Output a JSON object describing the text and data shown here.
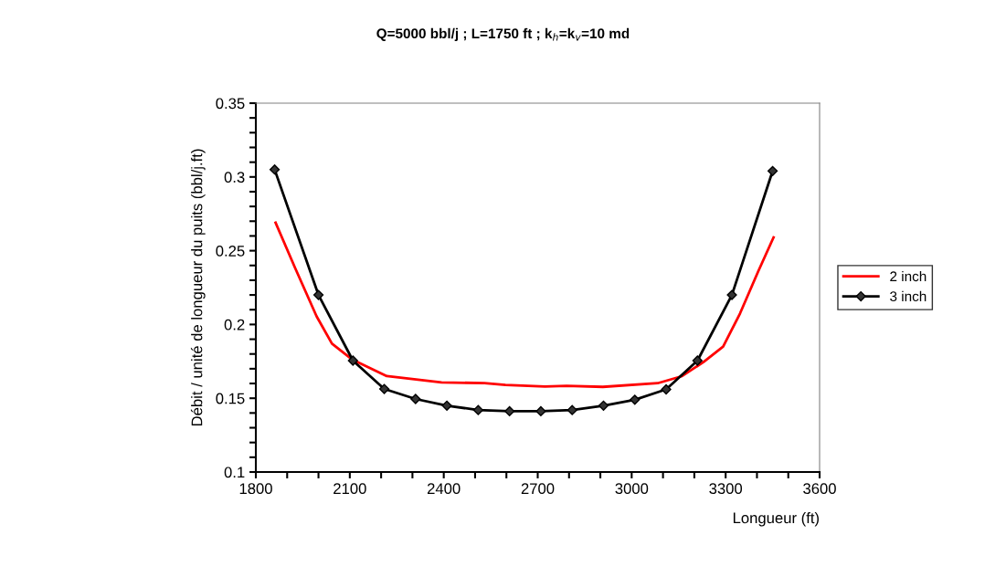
{
  "chart_data": {
    "type": "line",
    "title": "Q=5000 bbl/j ; L=1750 ft ; k$_{h}$=k$_{v}$=10 md",
    "xlabel": "Longueur (ft)",
    "ylabel": "Débit / unité de longueur du puits (bbl/j.ft)",
    "xlim": [
      1800,
      3600
    ],
    "ylim": [
      0.1,
      0.35
    ],
    "xticks": [
      1800,
      {
        "value": 1900,
        "label": null
      },
      {
        "value": 2000,
        "label": null
      },
      2100,
      {
        "value": 2200,
        "label": null
      },
      {
        "value": 2300,
        "label": null
      },
      2400,
      {
        "value": 2500,
        "label": null
      },
      {
        "value": 2600,
        "label": null
      },
      2700,
      {
        "value": 2800,
        "label": null
      },
      {
        "value": 2900,
        "label": null
      },
      3000,
      {
        "value": 3100,
        "label": null
      },
      {
        "value": 3200,
        "label": null
      },
      3300,
      {
        "value": 3400,
        "label": null
      },
      {
        "value": 3500,
        "label": null
      },
      3600
    ],
    "yticks": [
      0.1,
      {
        "value": 0.11,
        "label": null
      },
      {
        "value": 0.12,
        "label": null
      },
      {
        "value": 0.13,
        "label": null
      },
      {
        "value": 0.14,
        "label": null
      },
      0.15,
      {
        "value": 0.16,
        "label": null
      },
      {
        "value": 0.17,
        "label": null
      },
      {
        "value": 0.18,
        "label": null
      },
      {
        "value": 0.19,
        "label": null
      },
      0.2,
      {
        "value": 0.21,
        "label": null
      },
      {
        "value": 0.22,
        "label": null
      },
      {
        "value": 0.23,
        "label": null
      },
      {
        "value": 0.24,
        "label": null
      },
      0.25,
      {
        "value": 0.26,
        "label": null
      },
      {
        "value": 0.27,
        "label": null
      },
      {
        "value": 0.28,
        "label": null
      },
      {
        "value": 0.29,
        "label": null
      },
      0.3,
      {
        "value": 0.31,
        "label": null
      },
      {
        "value": 0.32,
        "label": null
      },
      {
        "value": 0.33,
        "label": null
      },
      {
        "value": 0.34,
        "label": null
      },
      0.35
    ],
    "grid": false,
    "legend": "right",
    "series": [
      {
        "name": "2 inch",
        "color": "#ff0000",
        "marker": "none",
        "x": [
          1863,
          1926,
          1994,
          2043,
          2106,
          2218,
          2393,
          2530,
          2597,
          2723,
          2792,
          2908,
          3083,
          3161,
          3229,
          3292,
          3346,
          3404,
          3453
        ],
        "values": [
          0.269,
          0.238,
          0.2055,
          0.187,
          0.1765,
          0.165,
          0.1607,
          0.1603,
          0.159,
          0.158,
          0.1584,
          0.1577,
          0.1602,
          0.165,
          0.1745,
          0.185,
          0.2075,
          0.236,
          0.259
        ]
      },
      {
        "name": "3 inch",
        "color": "#000000",
        "marker": "diamond",
        "x": [
          1860,
          2000,
          2110,
          2210,
          2310,
          2410,
          2510,
          2610,
          2710,
          2810,
          2910,
          3010,
          3110,
          3210,
          3320,
          3450
        ],
        "values": [
          0.305,
          0.22,
          0.1755,
          0.1563,
          0.1495,
          0.145,
          0.142,
          0.1412,
          0.1412,
          0.142,
          0.145,
          0.149,
          0.156,
          0.1755,
          0.22,
          0.304
        ]
      }
    ]
  }
}
